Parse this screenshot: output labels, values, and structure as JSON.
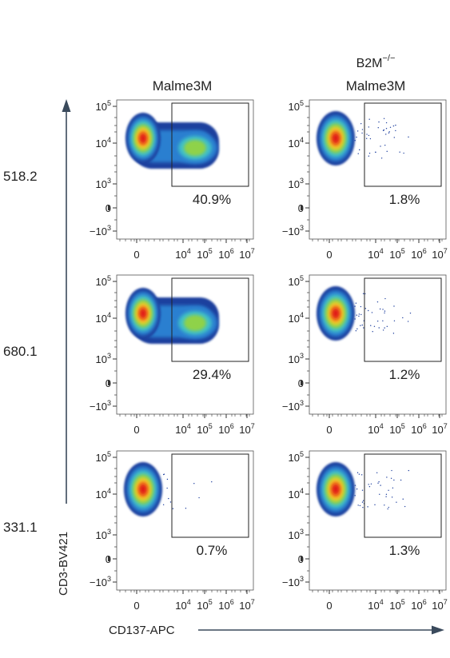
{
  "column_headers": [
    {
      "line1": "",
      "line1_base": "",
      "line1_sup": "",
      "line2": "Malme3M"
    },
    {
      "line1": "",
      "line1_base": "B2M",
      "line1_sup": "−/−",
      "line2": "Malme3M"
    }
  ],
  "row_labels": [
    "518.2",
    "680.1",
    "331.1"
  ],
  "y_axis_label": "CD3-BV421",
  "x_axis_label": "CD137-APC",
  "axis_color": "#3a4a5c",
  "chart_data": {
    "type": "scatter",
    "subtype": "flow-cytometry-density-plot",
    "xlabel": "CD137-APC",
    "ylabel": "CD3-BV421",
    "x_scale": "biexponential",
    "y_scale": "biexponential",
    "x_ticks": [
      "0",
      "10^4",
      "10^5",
      "10^6",
      "10^7"
    ],
    "y_ticks": [
      "10^5",
      "10^4",
      "10^3",
      "0",
      "−10^3"
    ],
    "panels": [
      {
        "row": 0,
        "col": 0,
        "row_label": "518.2",
        "column": "Malme3M",
        "gate_percent": "40.9%",
        "population": "split"
      },
      {
        "row": 0,
        "col": 1,
        "row_label": "518.2",
        "column": "B2M−/− Malme3M",
        "gate_percent": "1.8%",
        "population": "negative"
      },
      {
        "row": 1,
        "col": 0,
        "row_label": "680.1",
        "column": "Malme3M",
        "gate_percent": "29.4%",
        "population": "split"
      },
      {
        "row": 1,
        "col": 1,
        "row_label": "680.1",
        "column": "B2M−/− Malme3M",
        "gate_percent": "1.2%",
        "population": "negative"
      },
      {
        "row": 2,
        "col": 0,
        "row_label": "331.1",
        "column": "Malme3M",
        "gate_percent": "0.7%",
        "population": "negative"
      },
      {
        "row": 2,
        "col": 1,
        "row_label": "331.1",
        "column": "B2M−/− Malme3M",
        "gate_percent": "1.3%",
        "population": "negative"
      }
    ],
    "density_colors": [
      "#1e3f9e",
      "#2a7fd0",
      "#3fc0c8",
      "#8fd24a",
      "#f2d02a",
      "#f07a1c",
      "#e01818"
    ]
  }
}
